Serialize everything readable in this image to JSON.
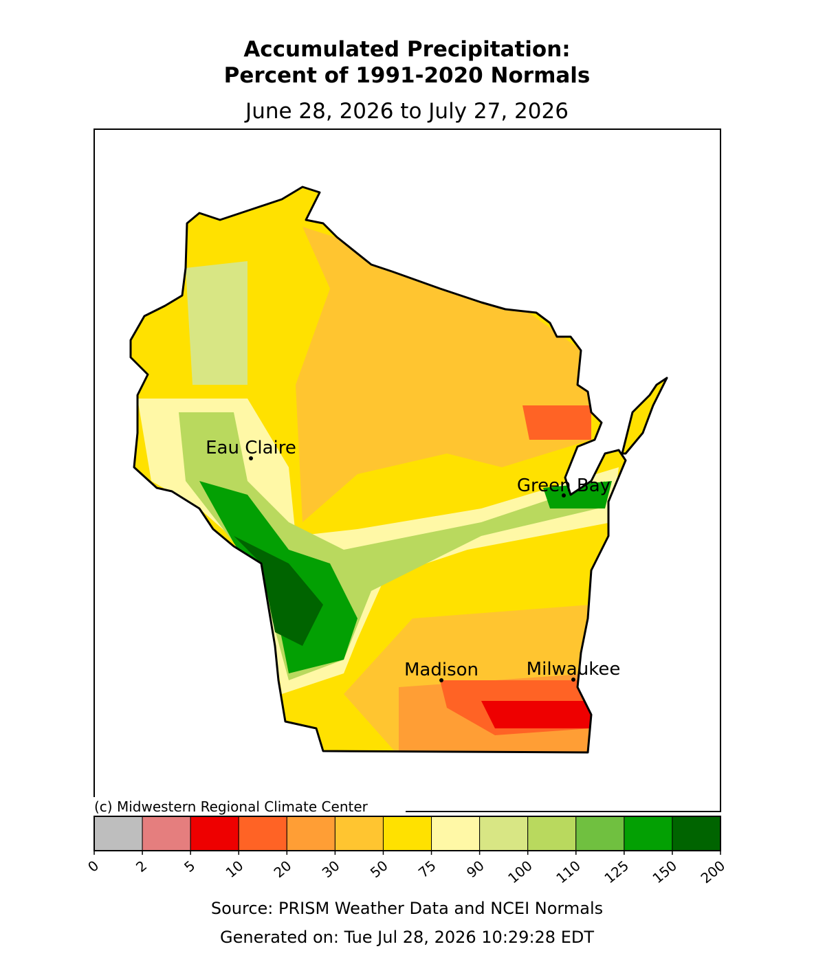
{
  "title": [
    "Accumulated Precipitation:",
    "Percent of 1991-2020 Normals"
  ],
  "subtitle": "June 28, 2026 to July 27, 2026",
  "cities": [
    {
      "name": "Eau Claire"
    },
    {
      "name": "Green Bay"
    },
    {
      "name": "Madison"
    },
    {
      "name": "Milwaukee"
    }
  ],
  "credit": "(c) Midwestern Regional Climate Center",
  "colorbar": {
    "bounds": [
      0,
      2,
      5,
      10,
      20,
      30,
      50,
      75,
      90,
      100,
      110,
      125,
      150,
      200
    ],
    "colors": [
      "#bebebe",
      "#e57e7e",
      "#ee0000",
      "#ff6325",
      "#ff9e35",
      "#ffc530",
      "#ffe100",
      "#fff8a6",
      "#d8e684",
      "#b9d95e",
      "#70c040",
      "#03a003",
      "#006400"
    ]
  },
  "source": "Source: PRISM Weather Data and NCEI Normals",
  "generated": "Generated on: Tue Jul 28, 2026 10:29:28 EDT"
}
